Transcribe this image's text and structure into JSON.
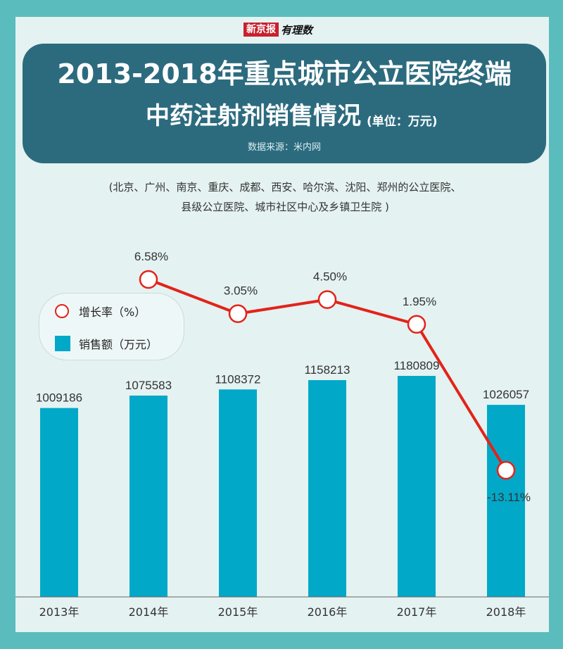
{
  "brand": {
    "red_label": "新京报",
    "black_label": "有理数"
  },
  "header": {
    "title_line1": "2013-2018年重点城市公立医院终端",
    "title_line2": "中药注射剂销售情况",
    "unit": "(单位：万元)",
    "source": "数据来源：米内网"
  },
  "note": {
    "line1": "(北京、广州、南京、重庆、成都、西安、哈尔滨、沈阳、郑州的公立医院、",
    "line2": "县级公立医院、城市社区中心及乡镇卫生院 )"
  },
  "legend": {
    "growth_label": "增长率（%）",
    "sales_label": "销售额（万元）"
  },
  "chart_data": {
    "type": "bar",
    "categories": [
      "2013年",
      "2014年",
      "2015年",
      "2016年",
      "2017年",
      "2018年"
    ],
    "series": [
      {
        "name": "销售额（万元）",
        "type": "bar",
        "values": [
          1009186,
          1075583,
          1108372,
          1158213,
          1180809,
          1026057
        ],
        "labels": [
          "1009186",
          "1075583",
          "1108372",
          "1158213",
          "1180809",
          "1026057"
        ],
        "color": "#02a8c8"
      },
      {
        "name": "增长率（%）",
        "type": "line",
        "x": [
          "2014年",
          "2015年",
          "2016年",
          "2017年",
          "2018年"
        ],
        "values": [
          6.58,
          3.05,
          4.5,
          1.95,
          -13.11
        ],
        "labels": [
          "6.58%",
          "3.05%",
          "4.50%",
          "1.95%",
          "-13.11%"
        ],
        "color": "#e2231a"
      }
    ],
    "ylim": [
      0,
      1200000
    ],
    "grid": false,
    "legend_position": "top-left"
  }
}
